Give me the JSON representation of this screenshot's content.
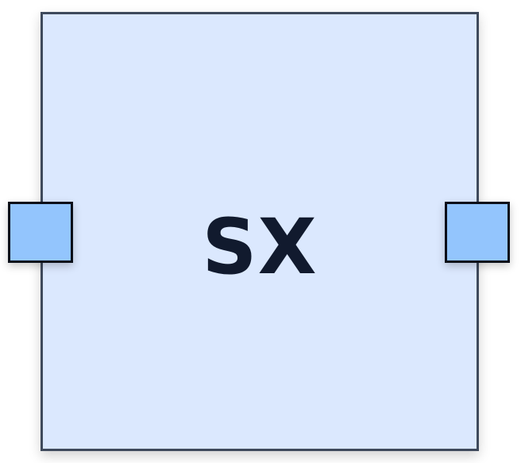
{
  "diagram": {
    "block": {
      "label": "SX",
      "fill_color": "#dbe8fe",
      "border_color": "#3f4a5c",
      "text_color": "#111a2e"
    },
    "ports": [
      {
        "side": "left",
        "fill_color": "#93c5fd",
        "border_color": "#0b0f19"
      },
      {
        "side": "right",
        "fill_color": "#93c5fd",
        "border_color": "#0b0f19"
      }
    ]
  }
}
